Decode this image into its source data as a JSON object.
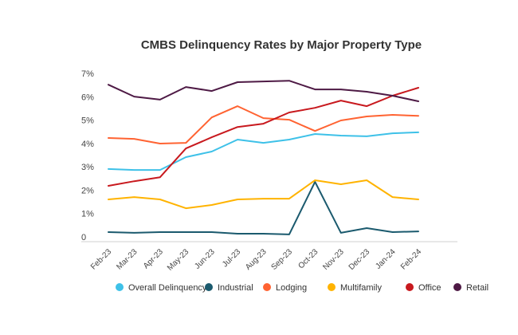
{
  "chart_data": {
    "type": "line",
    "title": "CMBS Delinquency Rates by Major Property Type",
    "xlabel": "",
    "ylabel": "",
    "ylim": [
      0,
      7
    ],
    "yticks": [
      "0",
      "1%",
      "2%",
      "3%",
      "4%",
      "5%",
      "6%",
      "7%"
    ],
    "grid": false,
    "legend_position": "bottom",
    "categories": [
      "Feb-23",
      "Mar-23",
      "Apr-23",
      "May-23",
      "Jun-23",
      "Jul-23",
      "Aug-23",
      "Sep-23",
      "Oct-23",
      "Nov-23",
      "Dec-23",
      "Jan-24",
      "Feb-24"
    ],
    "series": [
      {
        "name": "Overall Delinquency",
        "color": "#3EC1E8",
        "values": [
          3.11,
          3.07,
          3.07,
          3.62,
          3.86,
          4.37,
          4.23,
          4.37,
          4.61,
          4.54,
          4.51,
          4.64,
          4.68
        ]
      },
      {
        "name": "Industrial",
        "color": "#1B5A6E",
        "values": [
          0.41,
          0.38,
          0.41,
          0.41,
          0.41,
          0.34,
          0.34,
          0.31,
          2.56,
          0.38,
          0.58,
          0.41,
          0.44
        ]
      },
      {
        "name": "Lodging",
        "color": "#FF6332",
        "values": [
          4.44,
          4.4,
          4.2,
          4.23,
          5.32,
          5.8,
          5.29,
          5.22,
          4.74,
          5.19,
          5.36,
          5.43,
          5.39
        ]
      },
      {
        "name": "Multifamily",
        "color": "#FFB300",
        "values": [
          1.81,
          1.91,
          1.81,
          1.43,
          1.57,
          1.81,
          1.84,
          1.84,
          2.63,
          2.46,
          2.63,
          1.91,
          1.81
        ]
      },
      {
        "name": "Office",
        "color": "#C8191E",
        "values": [
          2.39,
          2.59,
          2.76,
          3.99,
          4.47,
          4.91,
          5.05,
          5.53,
          5.73,
          6.04,
          5.8,
          6.25,
          6.59
        ]
      },
      {
        "name": "Retail",
        "color": "#4E1A45",
        "values": [
          6.72,
          6.21,
          6.08,
          6.62,
          6.45,
          6.83,
          6.86,
          6.89,
          6.52,
          6.52,
          6.42,
          6.25,
          6.01
        ]
      }
    ]
  }
}
